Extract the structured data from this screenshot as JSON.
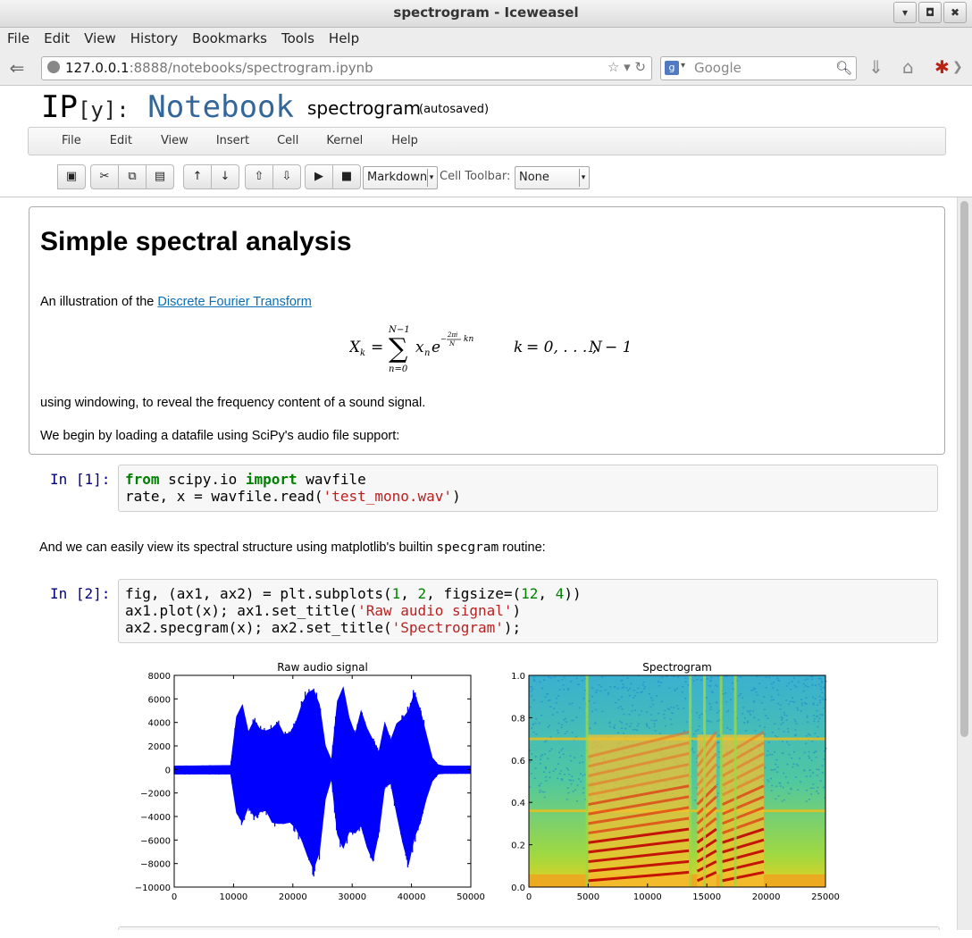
{
  "window": {
    "title": "spectrogram - Iceweasel",
    "controls": [
      "▾",
      "◘",
      "✖"
    ]
  },
  "browser_menu": [
    "File",
    "Edit",
    "View",
    "History",
    "Bookmarks",
    "Tools",
    "Help"
  ],
  "navigation": {
    "url_host": "127.0.0.1",
    "url_path": ":8888/notebooks/spectrogram.ipynb",
    "search_placeholder": "Google"
  },
  "notebook": {
    "logo_ip": "IP",
    "logo_y": "[y]:",
    "logo_word": "Notebook",
    "name": "spectrogram",
    "status": "(autosaved)",
    "menu": [
      "File",
      "Edit",
      "View",
      "Insert",
      "Cell",
      "Kernel",
      "Help"
    ],
    "cell_type": "Markdown",
    "cell_toolbar_label": "Cell Toolbar:",
    "cell_toolbar_value": "None"
  },
  "markdown": {
    "heading": "Simple spectral analysis",
    "intro_prefix": "An illustration of the ",
    "intro_link": "Discrete Fourier Transform",
    "windowing": "using windowing, to reveal the frequency content of a sound signal.",
    "loading": "We begin by loading a datafile using SciPy's audio file support:",
    "view_prefix": "And we can easily view its spectral structure using matplotlib's builtin ",
    "view_code": "specgram",
    "view_suffix": " routine:"
  },
  "cells": {
    "in1_prompt": "In [1]:",
    "in2_prompt": "In [2]:",
    "in1": {
      "l1_from": "from",
      "l1_mod": " scipy.io ",
      "l1_import": "import",
      "l1_name": " wavfile",
      "l2_a": "rate, x = wavfile.read(",
      "l2_str": "'test_mono.wav'",
      "l2_b": ")"
    },
    "in2": {
      "l1_a": "fig, (ax1, ax2) = plt.subplots(",
      "l1_n1": "1",
      "l1_b": ", ",
      "l1_n2": "2",
      "l1_c": ", figsize=(",
      "l1_n3": "12",
      "l1_d": ", ",
      "l1_n4": "4",
      "l1_e": "))",
      "l2_a": "ax1.plot(x); ax1.set_title(",
      "l2_str": "'Raw audio signal'",
      "l2_b": ")",
      "l3_a": "ax2.specgram(x); ax2.set_title(",
      "l3_str": "'Spectrogram'",
      "l3_b": ");"
    }
  },
  "chart_data": [
    {
      "type": "line",
      "title": "Raw audio signal",
      "xlim": [
        0,
        50000
      ],
      "ylim": [
        -10000,
        8000
      ],
      "xticks": [
        "0",
        "10000",
        "20000",
        "30000",
        "40000",
        "50000"
      ],
      "yticks": [
        "8000",
        "6000",
        "4000",
        "2000",
        "0",
        "−2000",
        "−4000",
        "−6000",
        "−8000",
        "−10000"
      ],
      "color": "#0000ff",
      "envelope": {
        "x": [
          0,
          9500,
          10500,
          11500,
          12500,
          13500,
          14500,
          15500,
          16500,
          17500,
          18500,
          19500,
          20500,
          21500,
          22500,
          23500,
          24500,
          25500,
          26500,
          27500,
          28500,
          29500,
          30500,
          31500,
          32500,
          33500,
          34500,
          35500,
          36500,
          37500,
          38500,
          39500,
          40500,
          41500,
          42500,
          43500,
          44500,
          45500,
          50000
        ],
        "max": [
          300,
          350,
          4500,
          5500,
          3200,
          4200,
          3400,
          3300,
          3500,
          4000,
          3000,
          3100,
          4000,
          5500,
          6500,
          6800,
          5500,
          2000,
          800,
          5800,
          7000,
          4400,
          3000,
          5000,
          3500,
          2500,
          1500,
          4000,
          2500,
          3900,
          4300,
          5000,
          6500,
          5000,
          3000,
          1000,
          400,
          300,
          300
        ],
        "min": [
          -400,
          -400,
          -3700,
          -4500,
          -3200,
          -4000,
          -3600,
          -3500,
          -4500,
          -4600,
          -4600,
          -4500,
          -5000,
          -6000,
          -7400,
          -8500,
          -7000,
          -2500,
          -800,
          -5500,
          -6700,
          -5300,
          -5400,
          -4800,
          -6600,
          -7800,
          -5400,
          -1500,
          -1200,
          -3800,
          -6200,
          -8100,
          -5800,
          -4500,
          -2500,
          -1000,
          -400,
          -350,
          -350
        ]
      }
    },
    {
      "type": "heatmap",
      "title": "Spectrogram",
      "xlim": [
        0,
        25000
      ],
      "ylim": [
        0,
        1.0
      ],
      "xticks": [
        "0",
        "5000",
        "10000",
        "15000",
        "20000",
        "25000"
      ],
      "yticks": [
        "1.0",
        "0.8",
        "0.6",
        "0.4",
        "0.2",
        "0.0"
      ],
      "colormap": "jet"
    }
  ]
}
